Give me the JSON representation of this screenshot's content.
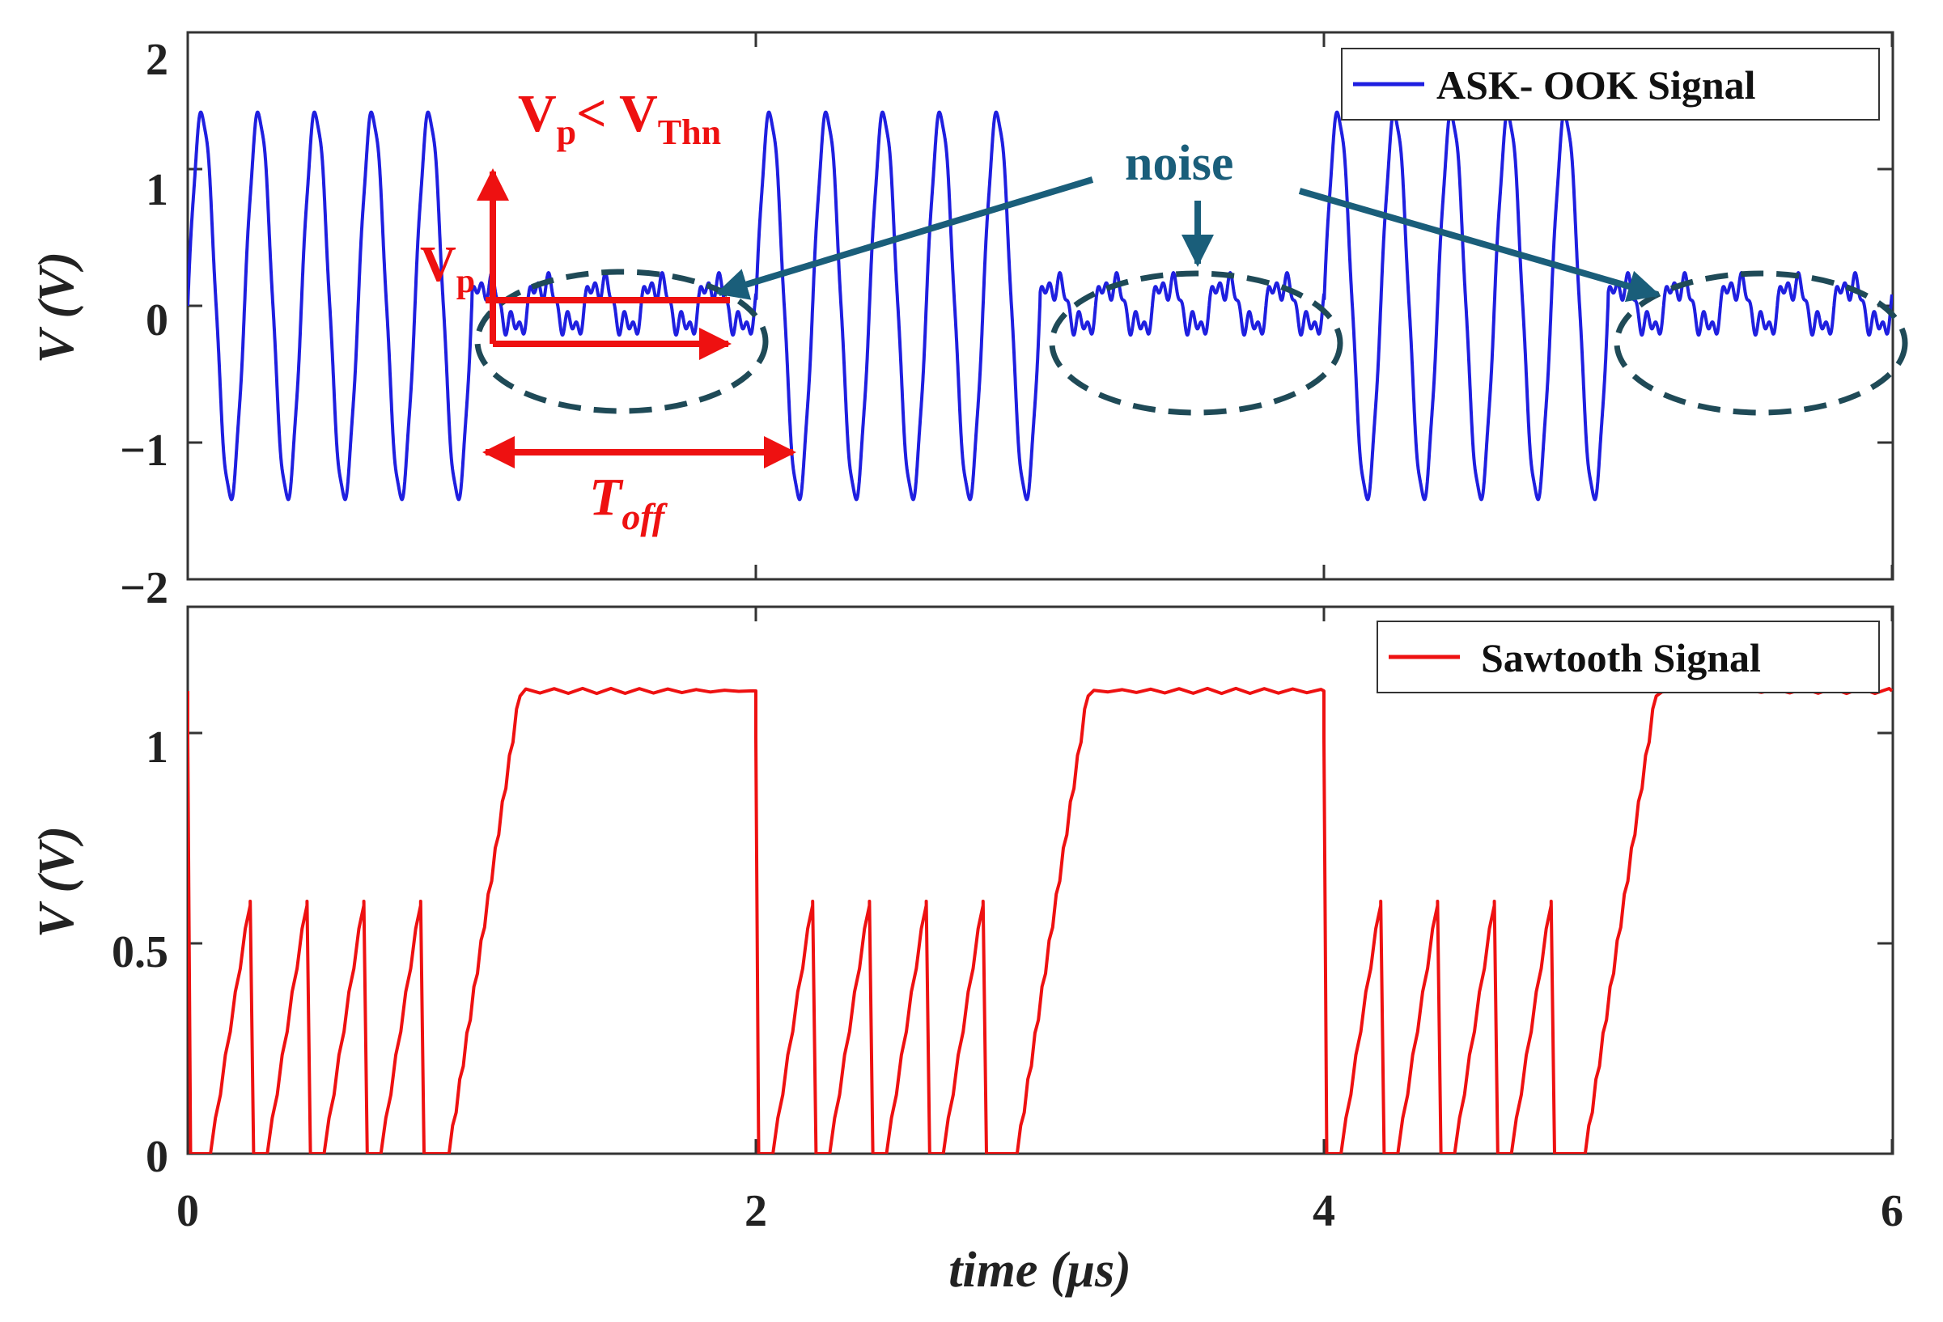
{
  "chart_data": [
    {
      "type": "line",
      "panel": "top",
      "ylabel": "V (V)",
      "xlim": [
        0,
        6
      ],
      "ylim": [
        -2,
        2
      ],
      "yticks": [
        "2",
        "1",
        "0",
        "−1",
        "−2"
      ],
      "legend": {
        "label": "ASK- OOK Signal",
        "color": "#1f1fe0",
        "placement": "top-right"
      },
      "series": [
        {
          "name": "ASK- OOK Signal",
          "color": "#1f1fe0",
          "carrier_amplitude": 1.4,
          "carrier_period_us": 0.2,
          "noise_amplitude": 0.3,
          "noise_period_us": 0.2,
          "segments": [
            {
              "state": "on",
              "start": 0,
              "end": 1
            },
            {
              "state": "off",
              "start": 1,
              "end": 2
            },
            {
              "state": "on",
              "start": 2,
              "end": 3
            },
            {
              "state": "off",
              "start": 3,
              "end": 4
            },
            {
              "state": "on",
              "start": 4,
              "end": 5
            },
            {
              "state": "off",
              "start": 5,
              "end": 6
            }
          ]
        }
      ],
      "annotations": {
        "threshold": "Vₚ< Vₜₕₙ",
        "threshold_main1": "V",
        "threshold_sub1": "p",
        "threshold_mid": "< V",
        "threshold_sub2": "Thn",
        "vp_main": "V",
        "vp_sub": "p",
        "toff_main": "T",
        "toff_sub": "off",
        "noise": "noise"
      }
    },
    {
      "type": "line",
      "panel": "bottom",
      "xlabel": "time (μs)",
      "ylabel": "V (V)",
      "xlim": [
        0,
        6
      ],
      "ylim": [
        0,
        1.3
      ],
      "xticks": [
        "0",
        "2",
        "4",
        "6"
      ],
      "yticks": [
        "1",
        "0.5",
        "0"
      ],
      "legend": {
        "label": "Sawtooth Signal",
        "color": "#ee1111",
        "placement": "top-right"
      },
      "series": [
        {
          "name": "Sawtooth Signal",
          "color": "#ee1111",
          "high_level": 1.1,
          "tooth_peak": 0.6,
          "tooth_peaks_us": [
            0.22,
            0.42,
            0.62,
            0.82,
            2.2,
            2.4,
            2.6,
            2.8,
            4.2,
            4.4,
            4.6,
            4.8
          ],
          "ramp_start_us": [
            0.92,
            2.92,
            4.92
          ],
          "reset_us": [
            0,
            2,
            4
          ]
        }
      ]
    }
  ]
}
